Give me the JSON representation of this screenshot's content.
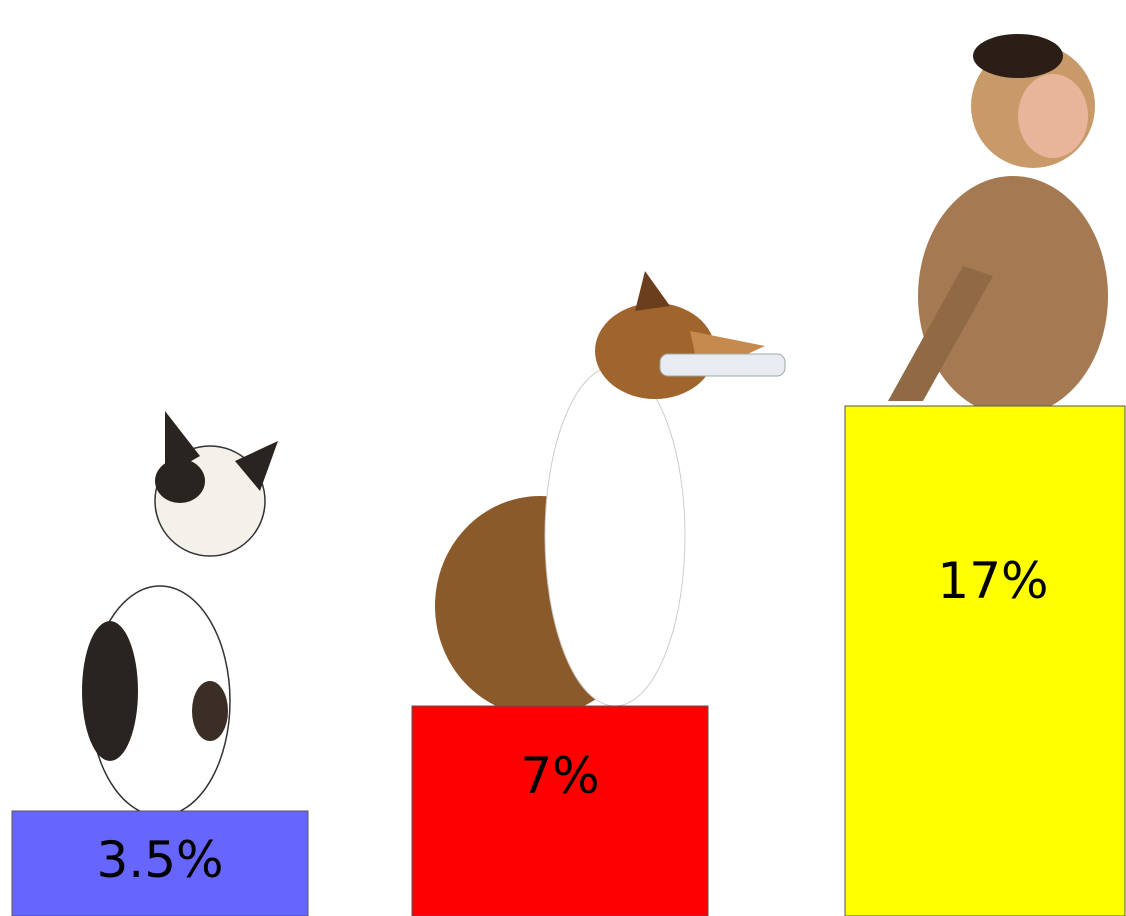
{
  "chart_data": {
    "type": "bar",
    "values": [
      3.5,
      7,
      17
    ],
    "value_labels": [
      "3.5%",
      "7%",
      "17%"
    ],
    "colors": [
      "#6666ff",
      "#ff0000",
      "#ffff00"
    ]
  }
}
